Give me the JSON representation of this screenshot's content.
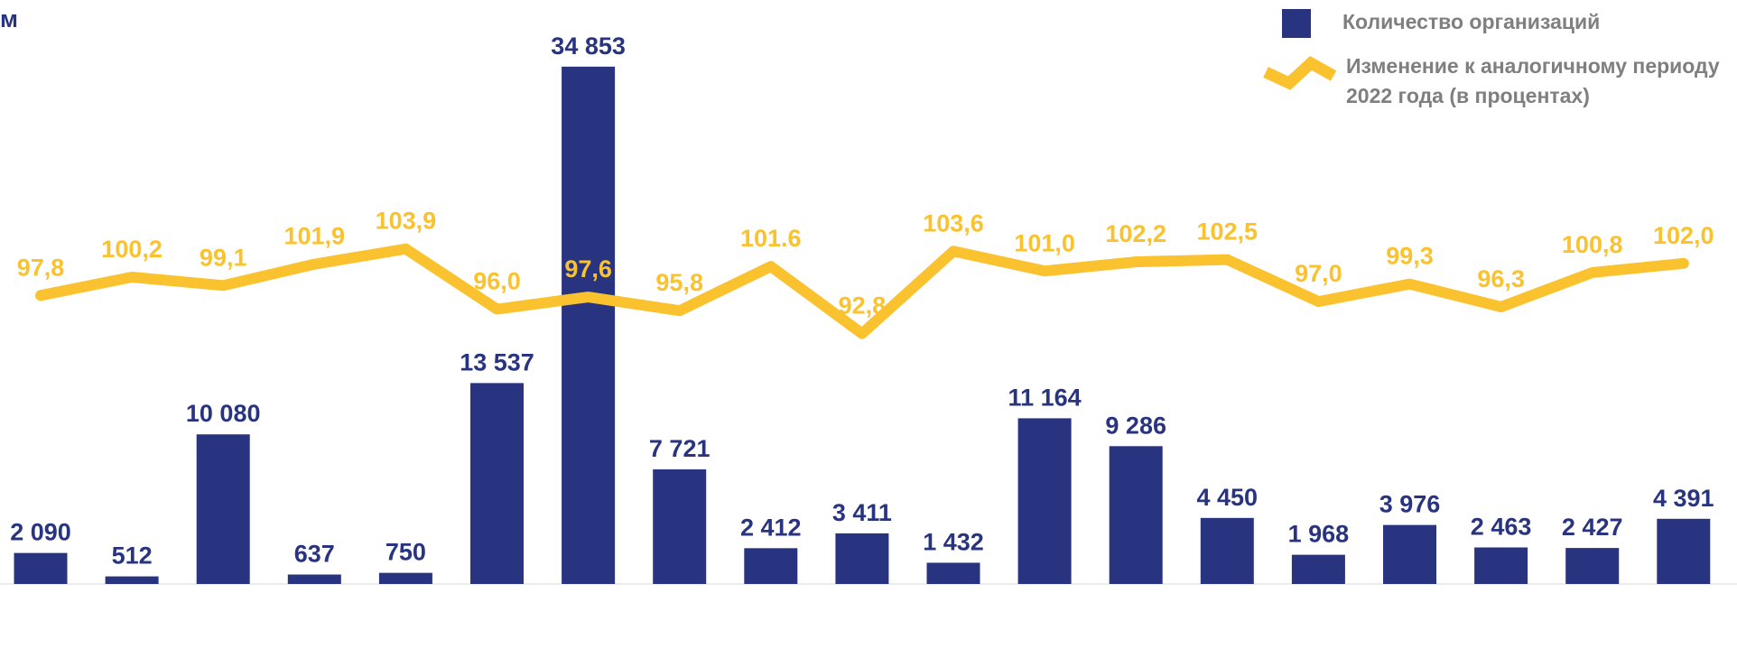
{
  "chart_data": {
    "type": "bar",
    "title": "м",
    "categories": [
      null,
      null,
      null,
      null,
      null,
      null,
      null,
      null,
      null,
      null,
      null,
      null,
      null,
      null,
      null,
      null,
      null,
      null,
      null
    ],
    "series": [
      {
        "name": "Количество организаций",
        "type": "bar",
        "color": "#283480",
        "values": [
          2090,
          512,
          10080,
          637,
          750,
          13537,
          34853,
          7721,
          2412,
          3411,
          1432,
          11164,
          9286,
          4450,
          1968,
          3976,
          2463,
          2427,
          4391
        ],
        "value_labels": [
          "2 090",
          "512",
          "10 080",
          "637",
          "750",
          "13 537",
          "34 853",
          "7 721",
          "2 412",
          "3 411",
          "1 432",
          "11 164",
          "9 286",
          "4 450",
          "1 968",
          "3 976",
          "2 463",
          "2 427",
          "4 391"
        ]
      },
      {
        "name": "Изменение к аналогичному периоду 2022 года (в процентах)",
        "type": "line",
        "axis": "y2",
        "color": "#f9c22e",
        "values": [
          97.8,
          100.2,
          99.1,
          101.9,
          103.9,
          96.0,
          97.6,
          95.8,
          101.6,
          92.8,
          103.6,
          101.0,
          102.2,
          102.5,
          97.0,
          99.3,
          96.3,
          100.8,
          102.0
        ],
        "value_labels": [
          "97,8",
          "100,2",
          "99,1",
          "101,9",
          "103,9",
          "96,0",
          "97,6",
          "95,8",
          "101.6",
          "92,8",
          "103,6",
          "101,0",
          "102,2",
          "102,5",
          "97,0",
          "99,3",
          "96,3",
          "100,8",
          "102,0"
        ]
      }
    ],
    "ylim": [
      0,
      36000
    ],
    "y2lim": [
      60,
      130
    ],
    "legend": "top-right"
  }
}
